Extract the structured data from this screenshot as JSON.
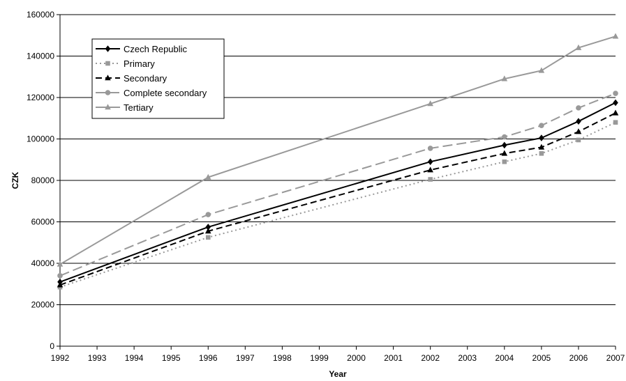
{
  "chart_data": {
    "type": "line",
    "xlabel": "Year",
    "ylabel": "CZK",
    "x_ticks": [
      "1992",
      "1993",
      "1994",
      "1995",
      "1996",
      "1997",
      "1998",
      "1999",
      "2000",
      "2001",
      "2002",
      "2003",
      "2004",
      "2005",
      "2006",
      "2007"
    ],
    "y_ticks": [
      "0",
      "20000",
      "40000",
      "60000",
      "80000",
      "100000",
      "120000",
      "140000",
      "160000"
    ],
    "xlim": [
      1992,
      2007
    ],
    "ylim": [
      0,
      160000
    ],
    "grid": "horizontal",
    "legend_position": "top-left",
    "series": [
      {
        "name": "Czech Republic",
        "color": "#000000",
        "line_style": "solid",
        "marker": "diamond",
        "points": [
          [
            1992,
            31000
          ],
          [
            1996,
            57500
          ],
          [
            2002,
            89000
          ],
          [
            2004,
            97000
          ],
          [
            2005,
            100500
          ],
          [
            2006,
            108500
          ],
          [
            2007,
            117500
          ]
        ]
      },
      {
        "name": "Primary",
        "color": "#999999",
        "line_style": "dotted",
        "marker": "square",
        "points": [
          [
            1992,
            28500
          ],
          [
            1996,
            52500
          ],
          [
            2002,
            80500
          ],
          [
            2004,
            89000
          ],
          [
            2005,
            93000
          ],
          [
            2006,
            99500
          ],
          [
            2007,
            108000
          ]
        ]
      },
      {
        "name": "Secondary",
        "color": "#000000",
        "line_style": "dashed",
        "marker": "triangle",
        "points": [
          [
            1992,
            29500
          ],
          [
            1996,
            55500
          ],
          [
            2002,
            85000
          ],
          [
            2004,
            93000
          ],
          [
            2005,
            96000
          ],
          [
            2006,
            103500
          ],
          [
            2007,
            112500
          ]
        ]
      },
      {
        "name": "Complete secondary",
        "color": "#999999",
        "line_style": "long-dash",
        "marker": "circle",
        "points": [
          [
            1992,
            34000
          ],
          [
            1996,
            63500
          ],
          [
            2002,
            95500
          ],
          [
            2004,
            101000
          ],
          [
            2005,
            106500
          ],
          [
            2006,
            115000
          ],
          [
            2007,
            122000
          ]
        ]
      },
      {
        "name": "Tertiary",
        "color": "#999999",
        "line_style": "solid",
        "marker": "triangle",
        "points": [
          [
            1992,
            39500
          ],
          [
            1996,
            81500
          ],
          [
            2002,
            117000
          ],
          [
            2004,
            129000
          ],
          [
            2005,
            133000
          ],
          [
            2006,
            144000
          ],
          [
            2007,
            149500
          ]
        ]
      }
    ]
  }
}
